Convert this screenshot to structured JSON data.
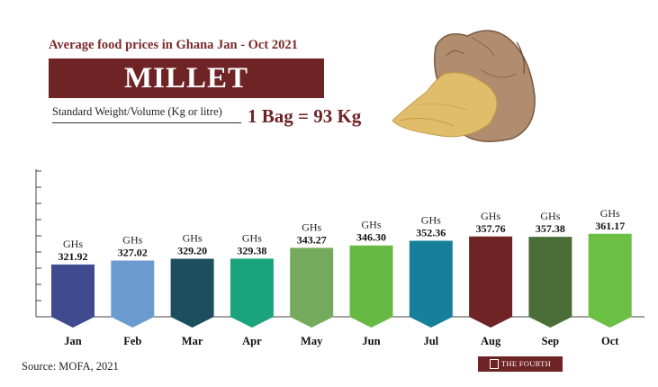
{
  "header": {
    "subtitle": "Average food prices in Ghana Jan - Oct 2021",
    "title": "MILLET",
    "weight_label": "Standard Weight/Volume (Kg or litre)",
    "bag_value": "1 Bag = 93 Kg"
  },
  "chart_data": {
    "type": "bar",
    "title": "MILLET",
    "categories": [
      "Jan",
      "Feb",
      "Mar",
      "Apr",
      "May",
      "Jun",
      "Jul",
      "Aug",
      "Sep",
      "Oct"
    ],
    "values": [
      321.92,
      327.02,
      329.2,
      329.38,
      343.27,
      346.3,
      352.36,
      357.76,
      357.38,
      361.17
    ],
    "value_labels": [
      "321.92",
      "327.02",
      "329.20",
      "329.38",
      "343.27",
      "346.30",
      "352.36",
      "357.76",
      "357.38",
      "361.17"
    ],
    "currency_label": "GHs",
    "colors": [
      "#3f4a8f",
      "#6c9ccf",
      "#1d4e5f",
      "#1aa37c",
      "#73aa5c",
      "#67b944",
      "#167f9a",
      "#6e2325",
      "#4b6e39",
      "#6bbf44"
    ],
    "xlabel": "",
    "ylabel": "",
    "grid": false
  },
  "footer": {
    "source": "Source: MOFA, 2021",
    "logo_text": "THE FOURTH ESTATE"
  }
}
